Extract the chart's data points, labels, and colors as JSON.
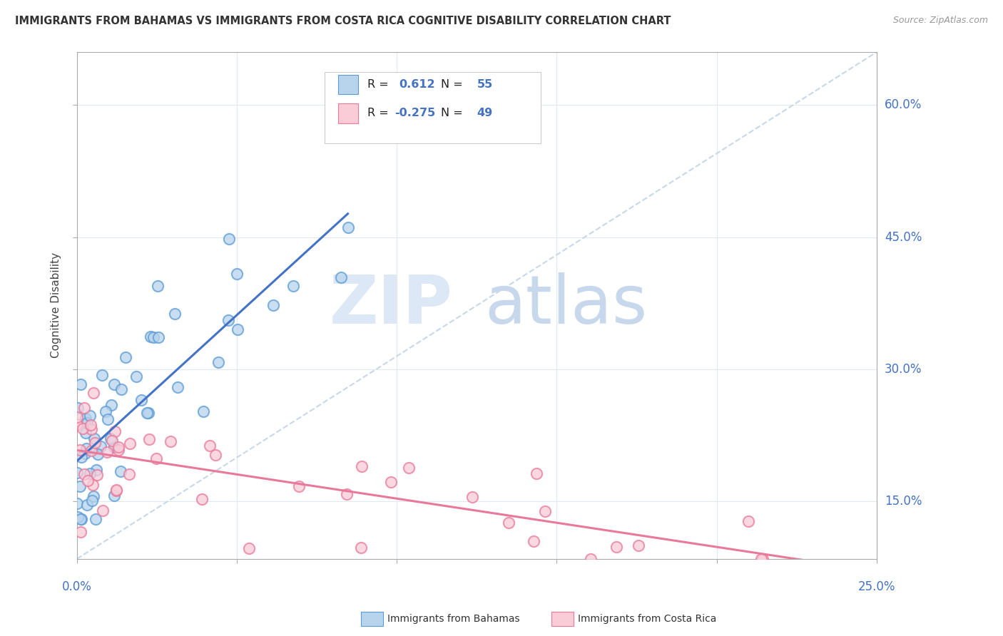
{
  "title": "IMMIGRANTS FROM BAHAMAS VS IMMIGRANTS FROM COSTA RICA COGNITIVE DISABILITY CORRELATION CHART",
  "source": "Source: ZipAtlas.com",
  "ylabel": "Cognitive Disability",
  "xlim": [
    0.0,
    0.25
  ],
  "ylim": [
    0.085,
    0.66
  ],
  "ytick_values": [
    0.15,
    0.3,
    0.45,
    0.6
  ],
  "ytick_labels": [
    "15.0%",
    "30.0%",
    "45.0%",
    "60.0%"
  ],
  "xtick_left": "0.0%",
  "xtick_right": "25.0%",
  "color_bahamas_fill": "#b8d4ec",
  "color_bahamas_edge": "#5b9bd5",
  "color_costa_rica_fill": "#f9ccd8",
  "color_costa_rica_edge": "#e8799a",
  "line_color_bahamas": "#4472c4",
  "line_color_costa_rica": "#e8799a",
  "diagonal_color": "#c8d8e8",
  "watermark_zip_color": "#dce8f5",
  "watermark_atlas_color": "#c8d8ec",
  "bg_color": "#ffffff",
  "grid_color": "#e0e8f0",
  "legend_box_color": "#f0f4f8",
  "legend_r1_val": "0.612",
  "legend_n1_val": "55",
  "legend_r2_val": "-0.275",
  "legend_n2_val": "49",
  "n_bahamas": 55,
  "n_costa_rica": 49,
  "seed": 12
}
